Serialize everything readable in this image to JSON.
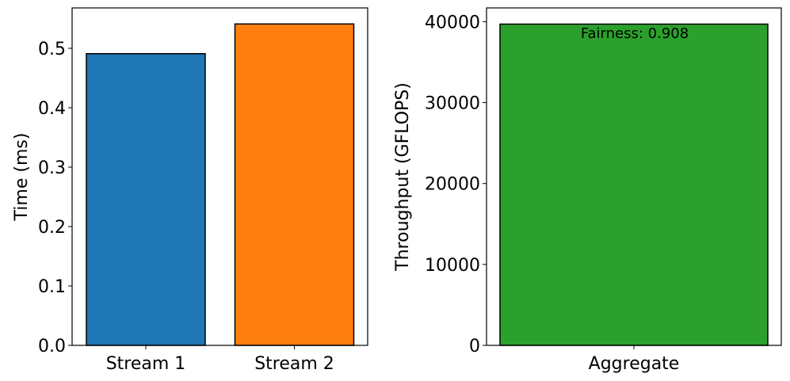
{
  "chart_data": [
    {
      "type": "bar",
      "categories": [
        "Stream 1",
        "Stream 2"
      ],
      "values": [
        0.491,
        0.541
      ],
      "colors": [
        "#1f77b4",
        "#ff7f0e"
      ],
      "xlabel": "",
      "ylabel": "Time (ms)",
      "ylim": [
        0,
        0.568
      ],
      "yticks": [
        0.0,
        0.1,
        0.2,
        0.3,
        0.4,
        0.5
      ],
      "ytick_labels": [
        "0.0",
        "0.1",
        "0.2",
        "0.3",
        "0.4",
        "0.5"
      ],
      "grid": false
    },
    {
      "type": "bar",
      "categories": [
        "Aggregate"
      ],
      "values": [
        39700
      ],
      "colors": [
        "#2ca02c"
      ],
      "xlabel": "",
      "ylabel": "Throughput (GFLOPS)",
      "ylim": [
        0,
        41700
      ],
      "yticks": [
        0,
        10000,
        20000,
        30000,
        40000
      ],
      "ytick_labels": [
        "0",
        "10000",
        "20000",
        "30000",
        "40000"
      ],
      "grid": false,
      "annotation": "Fairness: 0.908"
    }
  ]
}
